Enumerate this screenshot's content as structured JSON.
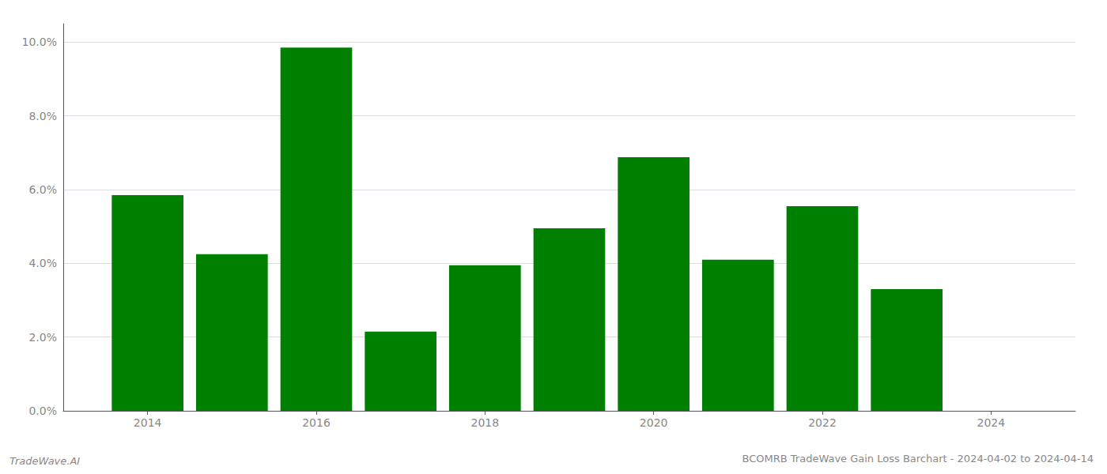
{
  "chart_data": {
    "type": "bar",
    "title": "BCOMRB TradeWave Gain Loss Barchart - 2024-04-02 to 2024-04-14",
    "annotations": [
      {
        "text": "TradeWave.AI"
      }
    ],
    "x": [
      2014,
      2015,
      2016,
      2017,
      2018,
      2019,
      2020,
      2021,
      2022,
      2023
    ],
    "values": [
      0.0585,
      0.0425,
      0.0985,
      0.0215,
      0.0395,
      0.0495,
      0.0688,
      0.041,
      0.0555,
      0.033
    ],
    "color": "#008000",
    "xlim": [
      2013,
      2025
    ],
    "xticks": [
      2014,
      2016,
      2018,
      2020,
      2022,
      2024
    ],
    "ylim": [
      0.0,
      0.105
    ],
    "yticks": [
      {
        "value": 0.0,
        "label": "0.0%"
      },
      {
        "value": 0.02,
        "label": "2.0%"
      },
      {
        "value": 0.04,
        "label": "4.0%"
      },
      {
        "value": 0.06,
        "label": "6.0%"
      },
      {
        "value": 0.08,
        "label": "8.0%"
      },
      {
        "value": 0.1,
        "label": "10.0%"
      }
    ],
    "grid": true
  }
}
